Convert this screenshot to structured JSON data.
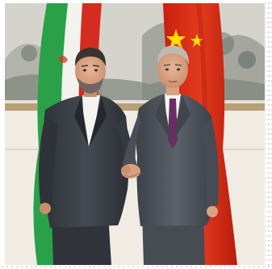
{
  "photo": {
    "scene": "",
    "colors": {
      "wall": "#e6e1d6",
      "painting": "#cfd0c8",
      "wainscot": "#f1ede6",
      "rail": "#b59a70",
      "iran_green": "#239f40",
      "iran_red": "#da0000",
      "china_red": "#de2910",
      "china_star": "#ffde00",
      "suit_left": "#3b3f46",
      "suit_right": "#4e535b",
      "tie": "#6a2d63"
    }
  }
}
